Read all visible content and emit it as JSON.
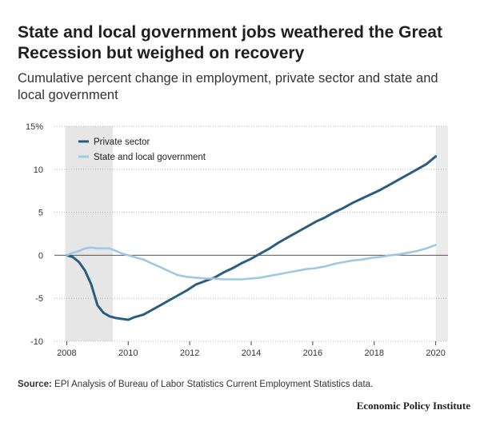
{
  "title": "State and local government jobs weathered the Great Recession but weighed on recovery",
  "subtitle": "Cumulative percent change in employment, private sector and state and local government",
  "source_label": "Source:",
  "source_text": "EPI Analysis of Bureau of Labor Statistics Current Employment Statistics data.",
  "brand": "Economic Policy Institute",
  "chart_data": {
    "type": "line",
    "title": "State and local government jobs weathered the Great Recession but weighed on recovery",
    "subtitle": "Cumulative percent change in employment, private sector and state and local government",
    "xlim": [
      2007.6,
      2020.4
    ],
    "ylim": [
      -10,
      15
    ],
    "x_ticks": [
      2008,
      2010,
      2012,
      2014,
      2016,
      2018,
      2020
    ],
    "y_ticks": [
      -10,
      -5,
      0,
      5,
      10,
      15
    ],
    "y_tick_labels": [
      "-10",
      "-5",
      "0",
      "5",
      "10",
      "15%"
    ],
    "recession_shading": [
      2007.95,
      2009.5
    ],
    "legend_position": "top-left",
    "grid": "horizontal dotted",
    "series": [
      {
        "name": "Private sector",
        "color": "#2a5d80",
        "x": [
          2008.0,
          2008.2,
          2008.4,
          2008.6,
          2008.8,
          2009.0,
          2009.2,
          2009.4,
          2009.6,
          2009.8,
          2010.0,
          2010.2,
          2010.5,
          2010.8,
          2011.0,
          2011.3,
          2011.6,
          2011.9,
          2012.2,
          2012.5,
          2012.8,
          2013.1,
          2013.4,
          2013.7,
          2014.0,
          2014.3,
          2014.6,
          2014.9,
          2015.2,
          2015.5,
          2015.8,
          2016.1,
          2016.4,
          2016.7,
          2017.0,
          2017.3,
          2017.6,
          2017.9,
          2018.2,
          2018.5,
          2018.8,
          2019.1,
          2019.4,
          2019.7,
          2020.0
        ],
        "values": [
          0.0,
          -0.2,
          -0.8,
          -1.8,
          -3.4,
          -5.8,
          -6.7,
          -7.1,
          -7.3,
          -7.4,
          -7.5,
          -7.2,
          -6.9,
          -6.3,
          -5.9,
          -5.3,
          -4.7,
          -4.1,
          -3.4,
          -3.0,
          -2.6,
          -2.0,
          -1.5,
          -0.9,
          -0.4,
          0.2,
          0.8,
          1.5,
          2.1,
          2.7,
          3.3,
          3.9,
          4.4,
          5.0,
          5.5,
          6.1,
          6.6,
          7.1,
          7.6,
          8.2,
          8.8,
          9.4,
          10.0,
          10.6,
          11.5
        ]
      },
      {
        "name": "State and local government",
        "color": "#9ec8e3",
        "x": [
          2008.0,
          2008.2,
          2008.4,
          2008.6,
          2008.8,
          2009.0,
          2009.2,
          2009.4,
          2009.6,
          2009.8,
          2010.0,
          2010.2,
          2010.5,
          2010.8,
          2011.0,
          2011.3,
          2011.6,
          2011.9,
          2012.2,
          2012.5,
          2012.8,
          2013.1,
          2013.4,
          2013.7,
          2014.0,
          2014.3,
          2014.6,
          2014.9,
          2015.2,
          2015.5,
          2015.8,
          2016.1,
          2016.4,
          2016.7,
          2017.0,
          2017.3,
          2017.6,
          2017.9,
          2018.2,
          2018.5,
          2018.8,
          2019.1,
          2019.4,
          2019.7,
          2020.0
        ],
        "values": [
          0.0,
          0.3,
          0.5,
          0.8,
          0.9,
          0.8,
          0.8,
          0.8,
          0.5,
          0.2,
          0.0,
          -0.2,
          -0.5,
          -1.0,
          -1.3,
          -1.8,
          -2.3,
          -2.5,
          -2.6,
          -2.7,
          -2.7,
          -2.8,
          -2.8,
          -2.8,
          -2.7,
          -2.6,
          -2.4,
          -2.2,
          -2.0,
          -1.8,
          -1.6,
          -1.5,
          -1.3,
          -1.0,
          -0.8,
          -0.6,
          -0.5,
          -0.3,
          -0.2,
          0.0,
          0.1,
          0.3,
          0.5,
          0.8,
          1.2
        ]
      }
    ]
  }
}
